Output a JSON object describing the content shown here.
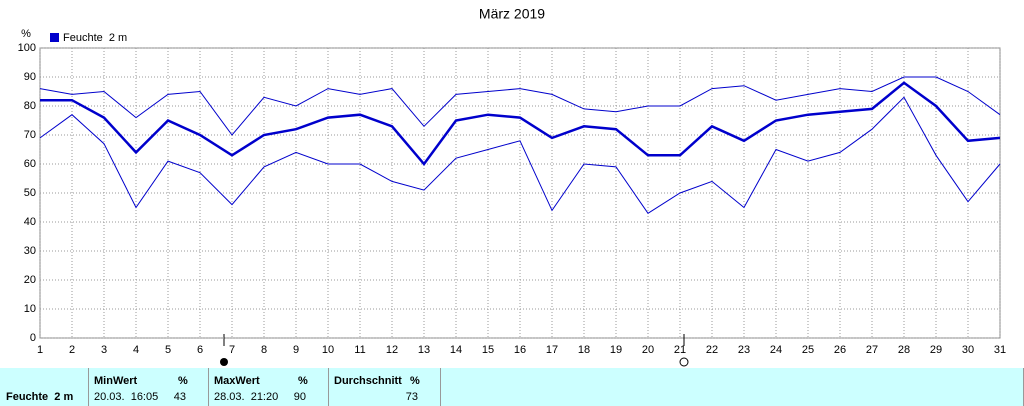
{
  "chart_data": {
    "type": "line",
    "title": "März 2019",
    "y_label": "%",
    "x": [
      1,
      2,
      3,
      4,
      5,
      6,
      7,
      8,
      9,
      10,
      11,
      12,
      13,
      14,
      15,
      16,
      17,
      18,
      19,
      20,
      21,
      22,
      23,
      24,
      25,
      26,
      27,
      28,
      29,
      30,
      31
    ],
    "xlim": [
      1,
      31
    ],
    "xticks": [
      1,
      2,
      3,
      4,
      5,
      6,
      7,
      8,
      9,
      10,
      11,
      12,
      13,
      14,
      15,
      16,
      17,
      18,
      19,
      20,
      21,
      22,
      23,
      24,
      25,
      26,
      27,
      28,
      29,
      30,
      31
    ],
    "ylim": [
      0,
      100
    ],
    "yticks": [
      0,
      10,
      20,
      30,
      40,
      50,
      60,
      70,
      80,
      90,
      100
    ],
    "grid": true,
    "series": [
      {
        "name": "Feuchte  2 m",
        "color": "#0000cc",
        "values": [
          82,
          82,
          76,
          64,
          75,
          70,
          63,
          70,
          72,
          76,
          77,
          73,
          60,
          75,
          77,
          76,
          69,
          73,
          72,
          63,
          63,
          73,
          68,
          75,
          77,
          78,
          79,
          88,
          80,
          68,
          69
        ]
      },
      {
        "color": "#0000cc",
        "values": [
          86,
          84,
          85,
          76,
          84,
          85,
          70,
          83,
          80,
          86,
          84,
          86,
          73,
          84,
          85,
          86,
          84,
          79,
          78,
          80,
          80,
          86,
          87,
          82,
          84,
          86,
          85,
          90,
          90,
          85,
          77
        ]
      },
      {
        "color": "#0000cc",
        "values": [
          69,
          77,
          67,
          45,
          61,
          57,
          46,
          59,
          64,
          60,
          60,
          54,
          51,
          62,
          65,
          68,
          44,
          60,
          59,
          43,
          50,
          54,
          45,
          65,
          61,
          64,
          72,
          83,
          63,
          47,
          60
        ]
      }
    ]
  },
  "summary": {
    "label": "Feuchte  2 m",
    "columns": [
      {
        "title": "MinWert",
        "unit": "%",
        "time": "20.03.  16:05",
        "value": 43
      },
      {
        "title": "MaxWert",
        "unit": "%",
        "time": "28.03.  21:20",
        "value": 90
      },
      {
        "title": "Durchschnitt",
        "unit": "%",
        "value": 73
      }
    ]
  }
}
